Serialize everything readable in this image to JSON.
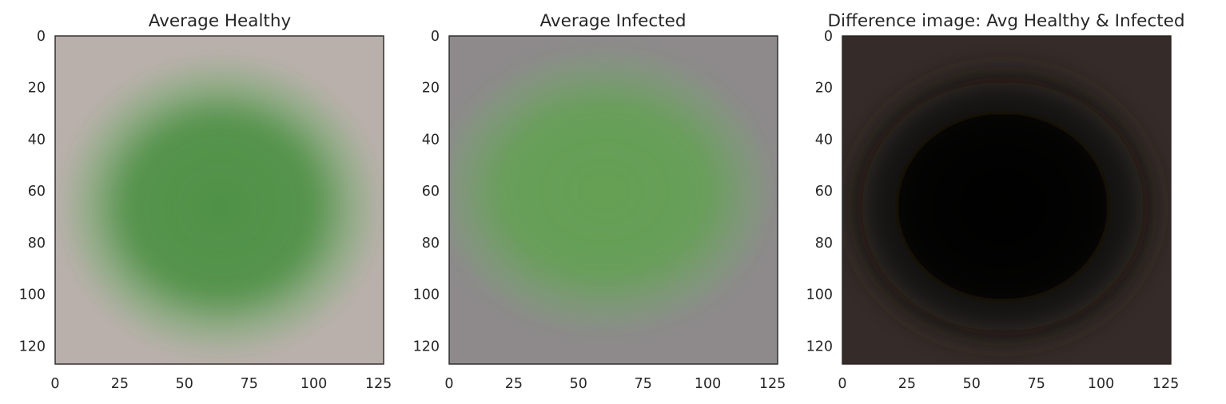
{
  "chart_data": [
    {
      "type": "heatmap",
      "title": "Average Healthy",
      "xlim": [
        0,
        127
      ],
      "ylim": [
        127,
        0
      ],
      "xticks": [
        0,
        25,
        50,
        75,
        100,
        125
      ],
      "yticks": [
        0,
        20,
        40,
        60,
        80,
        100,
        120
      ],
      "xtick_labels": [
        "0",
        "25",
        "50",
        "75",
        "100",
        "125"
      ],
      "ytick_labels": [
        "0",
        "20",
        "40",
        "60",
        "80",
        "100",
        "120"
      ],
      "grid": false,
      "colors": {
        "background": "#b9b0ab",
        "halo": "#92ae87",
        "center": "#4e9145"
      },
      "blob": {
        "cx": 64,
        "cy": 66,
        "rx": 53,
        "ry": 49
      }
    },
    {
      "type": "heatmap",
      "title": "Average Infected",
      "xlim": [
        0,
        127
      ],
      "ylim": [
        127,
        0
      ],
      "xticks": [
        0,
        25,
        50,
        75,
        100,
        125
      ],
      "yticks": [
        0,
        20,
        40,
        60,
        80,
        100,
        120
      ],
      "xtick_labels": [
        "0",
        "25",
        "50",
        "75",
        "100",
        "125"
      ],
      "ytick_labels": [
        "0",
        "20",
        "40",
        "60",
        "80",
        "100",
        "120"
      ],
      "grid": false,
      "colors": {
        "background": "#8e8a8c",
        "halo": "#7f9a79",
        "center": "#64a054"
      },
      "blob": {
        "cx": 60,
        "cy": 60,
        "rx": 57,
        "ry": 47
      }
    },
    {
      "type": "heatmap",
      "title": "Difference image: Avg Healthy & Infected",
      "xlim": [
        0,
        127
      ],
      "ylim": [
        127,
        0
      ],
      "xticks": [
        0,
        25,
        50,
        75,
        100,
        125
      ],
      "yticks": [
        0,
        20,
        40,
        60,
        80,
        100,
        120
      ],
      "xtick_labels": [
        "0",
        "25",
        "50",
        "75",
        "100",
        "125"
      ],
      "ytick_labels": [
        "0",
        "20",
        "40",
        "60",
        "80",
        "100",
        "120"
      ],
      "grid": false,
      "colors": {
        "background": "#352b28",
        "halo": "#1c1a14",
        "center": "#040404"
      },
      "blob": {
        "cx": 62,
        "cy": 66,
        "rx": 54,
        "ry": 48
      }
    }
  ]
}
